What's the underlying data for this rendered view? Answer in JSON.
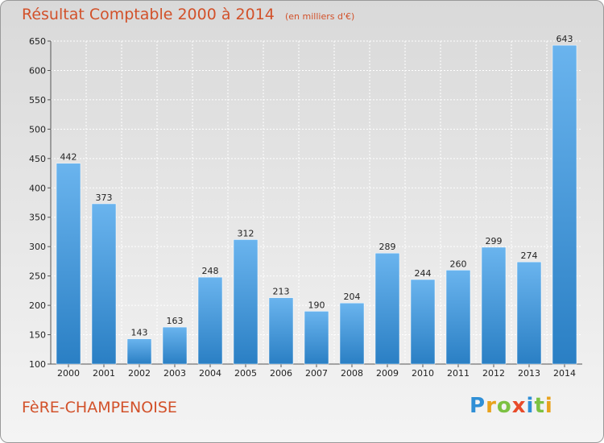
{
  "chart_data": {
    "type": "bar",
    "title": "Résultat Comptable 2000 à 2014",
    "unit": "(en milliers d'€)",
    "categories": [
      "2000",
      "2001",
      "2002",
      "2003",
      "2004",
      "2005",
      "2006",
      "2007",
      "2008",
      "2009",
      "2010",
      "2011",
      "2012",
      "2013",
      "2014"
    ],
    "values": [
      442,
      373,
      143,
      163,
      248,
      312,
      213,
      190,
      204,
      289,
      244,
      260,
      299,
      274,
      643
    ],
    "ylim": [
      100,
      650
    ],
    "yticks": [
      100,
      150,
      200,
      250,
      300,
      350,
      400,
      450,
      500,
      550,
      600,
      650
    ],
    "xlabel": "",
    "ylabel": "",
    "grid": true,
    "bar_color_top": "#6ab4ee",
    "bar_color_bottom": "#2a7fc4"
  },
  "commune": "FèRE-CHAMPENOISE",
  "logo": {
    "letters": [
      "P",
      "r",
      "o",
      "x",
      "i",
      "t",
      "i"
    ],
    "colors": [
      "#2f8fd6",
      "#e8a21c",
      "#7cc142",
      "#e84b2a",
      "#2f8fd6",
      "#7cc142",
      "#e8a21c"
    ]
  }
}
